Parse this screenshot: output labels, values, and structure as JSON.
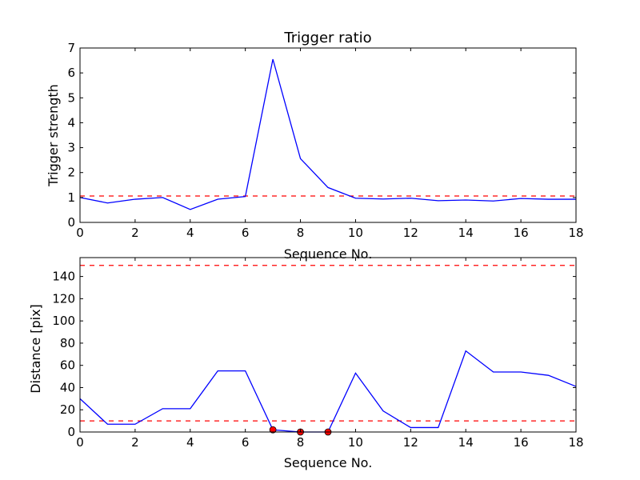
{
  "chart_data": [
    {
      "type": "line",
      "title": "Trigger ratio",
      "xlabel": "Sequence No.",
      "ylabel": "Trigger strength",
      "xlim": [
        0,
        18
      ],
      "ylim": [
        0,
        7
      ],
      "xticks": [
        0,
        2,
        4,
        6,
        8,
        10,
        12,
        14,
        16,
        18
      ],
      "yticks": [
        0,
        1,
        2,
        3,
        4,
        5,
        6,
        7
      ],
      "grid": false,
      "legend": "none",
      "series": [
        {
          "color": "#0000ff",
          "x": [
            0,
            1,
            2,
            3,
            4,
            5,
            6,
            7,
            8,
            9,
            10,
            11,
            12,
            13,
            14,
            15,
            16,
            17,
            18
          ],
          "y": [
            1.0,
            0.78,
            0.93,
            1.0,
            0.52,
            0.93,
            1.04,
            6.55,
            2.56,
            1.4,
            0.97,
            0.94,
            0.97,
            0.87,
            0.9,
            0.86,
            0.96,
            0.93,
            0.93
          ]
        }
      ],
      "hlines": [
        {
          "y": 1.06,
          "color": "#ff0000",
          "style": "dashed"
        }
      ]
    },
    {
      "type": "line",
      "title": "",
      "xlabel": "Sequence No.",
      "ylabel": "Distance [pix]",
      "xlim": [
        0,
        18
      ],
      "ylim": [
        0,
        157
      ],
      "xticks": [
        0,
        2,
        4,
        6,
        8,
        10,
        12,
        14,
        16,
        18
      ],
      "yticks": [
        0,
        20,
        40,
        60,
        80,
        100,
        120,
        140
      ],
      "grid": false,
      "legend": "none",
      "series": [
        {
          "color": "#0000ff",
          "x": [
            0,
            1,
            2,
            3,
            4,
            5,
            6,
            7,
            8,
            9,
            10,
            11,
            12,
            13,
            14,
            15,
            16,
            17,
            18
          ],
          "y": [
            30,
            7,
            7,
            21,
            21,
            55,
            55,
            2,
            0,
            0,
            53,
            19,
            4,
            4,
            73,
            54,
            54,
            51,
            41
          ]
        }
      ],
      "markers": {
        "color": "#ff0000",
        "x": [
          7,
          8,
          9
        ],
        "y": [
          2,
          0,
          0
        ]
      },
      "hlines": [
        {
          "y": 150,
          "color": "#ff0000",
          "style": "dashed"
        },
        {
          "y": 10,
          "color": "#ff0000",
          "style": "dashed"
        }
      ]
    }
  ]
}
